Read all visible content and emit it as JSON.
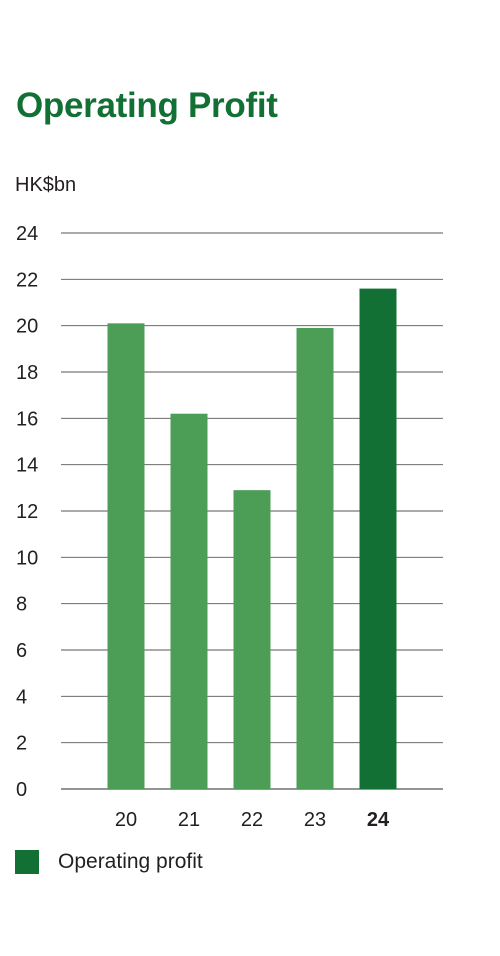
{
  "title": "Operating Profit",
  "unit_label": "HK$bn",
  "legend": [
    {
      "label": "Operating profit",
      "color": "#137034"
    }
  ],
  "colors": {
    "bar": "#4c9e57",
    "bar_highlight": "#137034",
    "grid": "#555555",
    "title": "#137034"
  },
  "chart_data": {
    "type": "bar",
    "title": "Operating Profit",
    "ylabel": "HK$bn",
    "xlabel": "",
    "categories": [
      "20",
      "21",
      "22",
      "23",
      "24"
    ],
    "series": [
      {
        "name": "Operating profit",
        "values": [
          20.1,
          16.2,
          12.9,
          19.9,
          21.6
        ]
      }
    ],
    "highlight_category": "24",
    "ylim": [
      0,
      24
    ],
    "yticks": [
      0,
      2,
      4,
      6,
      8,
      10,
      12,
      14,
      16,
      18,
      20,
      22,
      24
    ],
    "grid": true,
    "legend_position": "bottom-left"
  }
}
